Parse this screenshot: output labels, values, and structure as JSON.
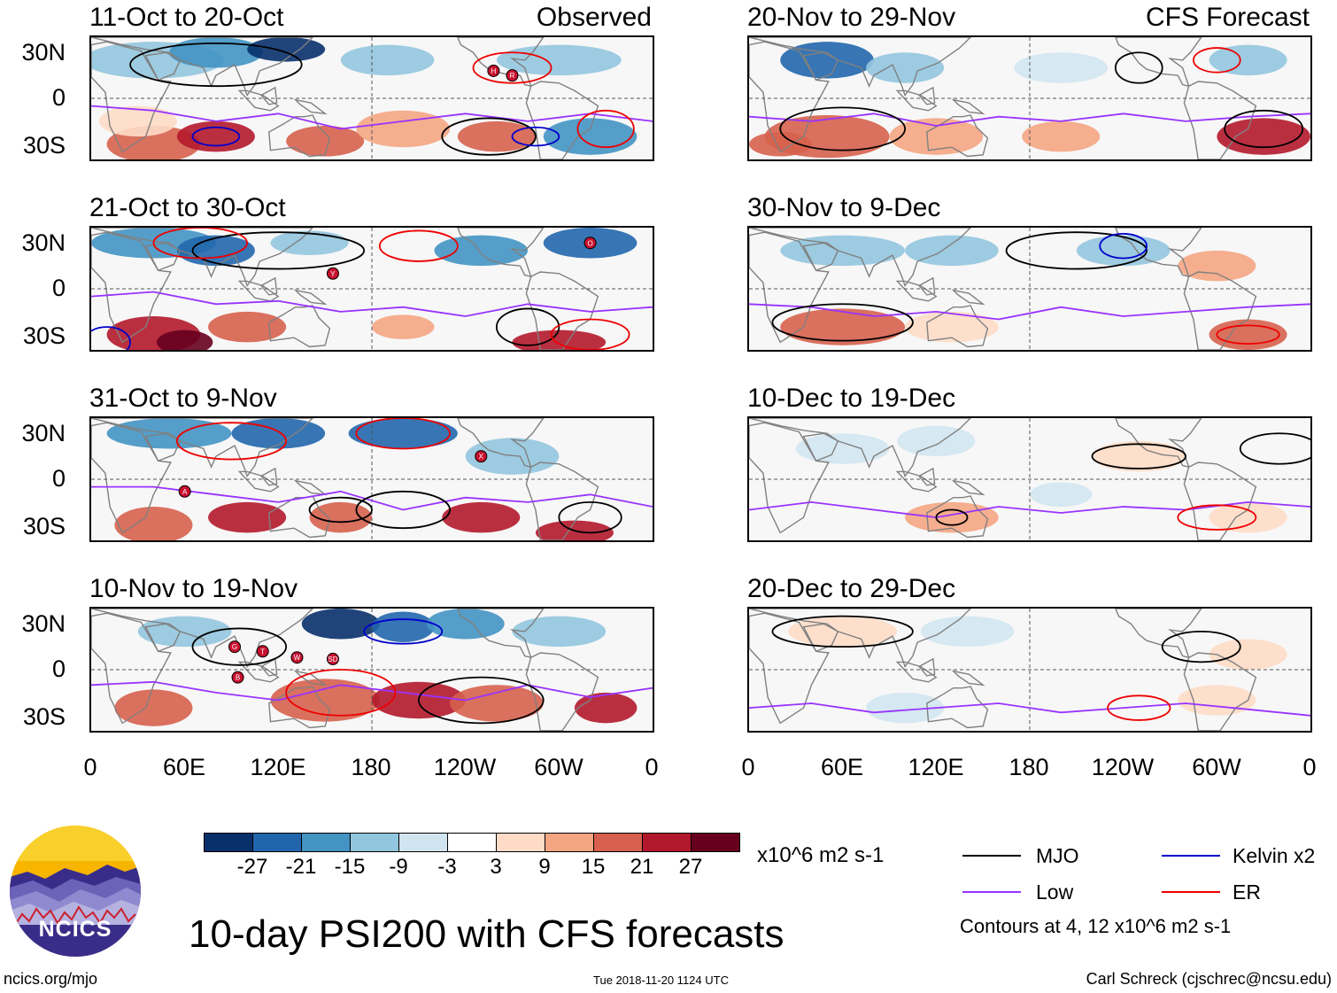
{
  "panels": [
    {
      "title": "11-Oct to 20-Oct",
      "tag": "Observed"
    },
    {
      "title": "21-Oct to 30-Oct",
      "tag": ""
    },
    {
      "title": "31-Oct to 9-Nov",
      "tag": ""
    },
    {
      "title": "10-Nov to 19-Nov",
      "tag": ""
    },
    {
      "title": "20-Nov to 29-Nov",
      "tag": "CFS Forecast"
    },
    {
      "title": "30-Nov to 9-Dec",
      "tag": ""
    },
    {
      "title": "10-Dec to 19-Dec",
      "tag": ""
    },
    {
      "title": "20-Dec to 29-Dec",
      "tag": ""
    }
  ],
  "y_axis": {
    "top": "30N",
    "mid": "0",
    "bottom": "30S"
  },
  "x_axis": [
    "0",
    "60E",
    "120E",
    "180",
    "120W",
    "60W",
    "0"
  ],
  "colorbar": {
    "colors": [
      "#08306b",
      "#2166ac",
      "#4393c3",
      "#92c5de",
      "#d1e5f0",
      "#ffffff",
      "#fddbc7",
      "#f4a582",
      "#d6604d",
      "#b2182b",
      "#67001f"
    ],
    "labels": [
      "-27",
      "-21",
      "-15",
      "-9",
      "-3",
      "3",
      "9",
      "15",
      "21",
      "27"
    ],
    "units": "x10^6 m2 s-1"
  },
  "legend": {
    "items": [
      {
        "name": "MJO",
        "color": "#000000"
      },
      {
        "name": "Kelvin x2",
        "color": "#0000cc"
      },
      {
        "name": "Low",
        "color": "#9933ff"
      },
      {
        "name": "ER",
        "color": "#ee0000"
      }
    ],
    "note": "Contours at 4, 12 x10^6 m2 s-1"
  },
  "title": "10-day PSI200 with CFS forecasts",
  "footer": {
    "left": "ncics.org/mjo",
    "center": "Tue 2018-11-20 1124 UTC",
    "right": "Carl Schreck (cjschrec@ncsu.edu)"
  },
  "logo_text": "NCICS",
  "storms": {
    "p0": [
      "H",
      "R"
    ],
    "p1": [
      "Y",
      "O"
    ],
    "p2": [
      "A",
      "X"
    ],
    "p3": [
      "G",
      "T",
      "W",
      "SD",
      "B"
    ]
  }
}
